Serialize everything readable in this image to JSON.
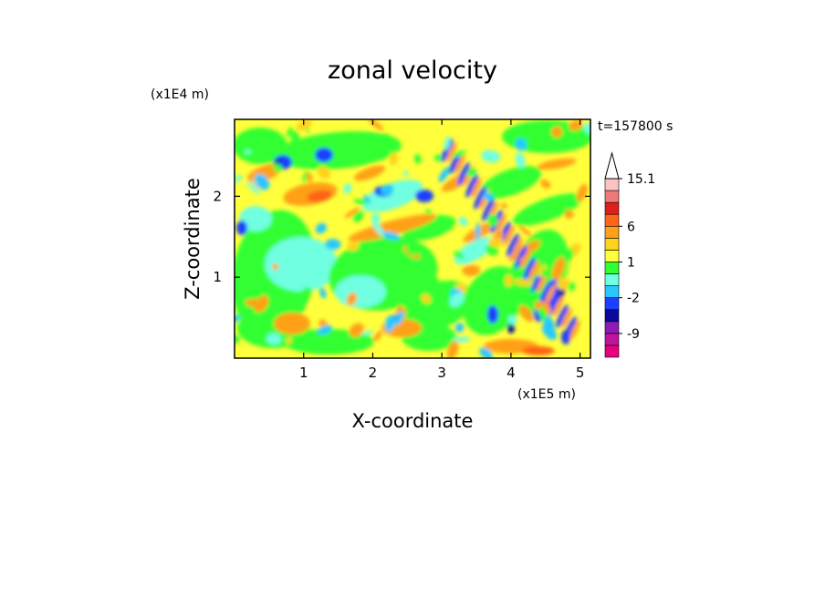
{
  "chart_data": {
    "type": "heatmap",
    "title": "zonal velocity",
    "xlabel": "X-coordinate",
    "ylabel": "Z-coordinate",
    "x_unit": "(x1E5 m)",
    "y_unit": "(x1E4 m)",
    "time_label": "t=157800 s",
    "x_ticks": [
      "1",
      "2",
      "3",
      "4",
      "5"
    ],
    "y_ticks": [
      "1",
      "2"
    ],
    "xlim": [
      0,
      5.15
    ],
    "ylim": [
      0,
      2.95
    ],
    "colorbar": {
      "levels": [
        -15,
        -12,
        -9,
        -6,
        -4,
        -2,
        -1,
        0,
        1,
        2,
        4,
        6,
        9,
        12,
        15.1
      ],
      "colors": [
        "#e6007e",
        "#c0149e",
        "#8e1ab8",
        "#0a0a9a",
        "#1e3fff",
        "#28c8ff",
        "#70ffe0",
        "#30ff30",
        "#ffff3c",
        "#ffd21e",
        "#ffa019",
        "#ff6419",
        "#e01e1e",
        "#f07878",
        "#fbc3c3"
      ],
      "tick_labels": [
        "15.1",
        "6",
        "1",
        "-2",
        "-9"
      ],
      "extend_top": true
    }
  }
}
